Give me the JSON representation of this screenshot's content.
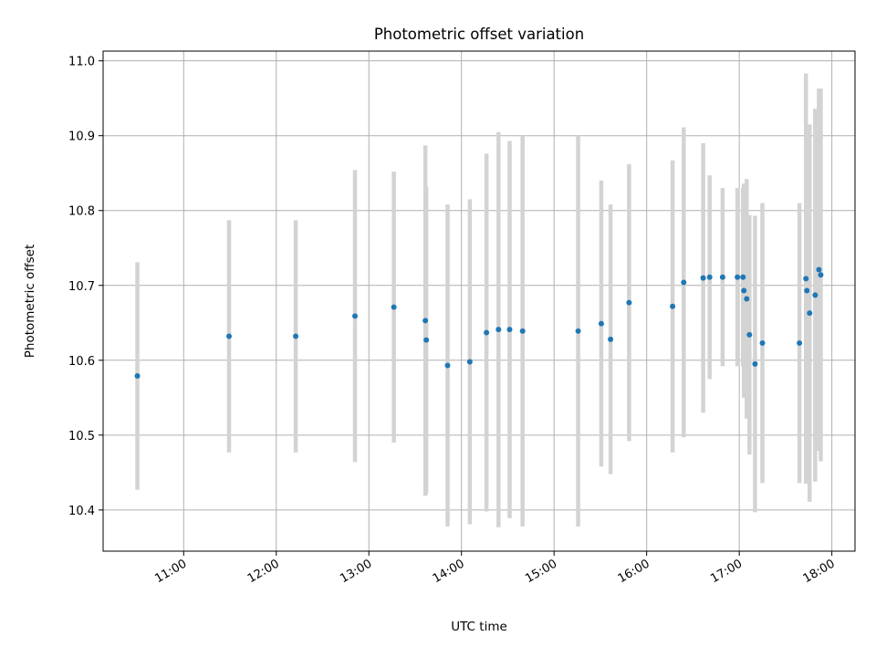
{
  "chart_data": {
    "type": "scatter",
    "title": "Photometric offset variation",
    "xlabel": "UTC time",
    "ylabel": "Photometric offset",
    "x_unit": "hours UTC",
    "xlim": [
      10.13,
      18.25
    ],
    "ylim": [
      10.345,
      11.013
    ],
    "x_ticks": [
      {
        "value": 11,
        "label": "11:00"
      },
      {
        "value": 12,
        "label": "12:00"
      },
      {
        "value": 13,
        "label": "13:00"
      },
      {
        "value": 14,
        "label": "14:00"
      },
      {
        "value": 15,
        "label": "15:00"
      },
      {
        "value": 16,
        "label": "16:00"
      },
      {
        "value": 17,
        "label": "17:00"
      },
      {
        "value": 18,
        "label": "18:00"
      }
    ],
    "y_ticks": [
      {
        "value": 10.4,
        "label": "10.4"
      },
      {
        "value": 10.5,
        "label": "10.5"
      },
      {
        "value": 10.6,
        "label": "10.6"
      },
      {
        "value": 10.7,
        "label": "10.7"
      },
      {
        "value": 10.8,
        "label": "10.8"
      },
      {
        "value": 10.9,
        "label": "10.9"
      },
      {
        "value": 11.0,
        "label": "11.0"
      }
    ],
    "grid": true,
    "marker_color": "#1f77b4",
    "errorbar_color": "#d3d3d3",
    "points": [
      {
        "x": 10.5,
        "y": 10.579,
        "err": 0.152
      },
      {
        "x": 11.49,
        "y": 10.632,
        "err": 0.155
      },
      {
        "x": 12.21,
        "y": 10.632,
        "err": 0.155
      },
      {
        "x": 12.85,
        "y": 10.659,
        "err": 0.195
      },
      {
        "x": 13.27,
        "y": 10.671,
        "err": 0.181
      },
      {
        "x": 13.61,
        "y": 10.653,
        "err": 0.234
      },
      {
        "x": 13.62,
        "y": 10.627,
        "err": 0.205
      },
      {
        "x": 13.85,
        "y": 10.593,
        "err": 0.215
      },
      {
        "x": 14.09,
        "y": 10.598,
        "err": 0.217
      },
      {
        "x": 14.27,
        "y": 10.637,
        "err": 0.239
      },
      {
        "x": 14.4,
        "y": 10.641,
        "err": 0.264
      },
      {
        "x": 14.52,
        "y": 10.641,
        "err": 0.252
      },
      {
        "x": 14.66,
        "y": 10.639,
        "err": 0.261
      },
      {
        "x": 15.26,
        "y": 10.639,
        "err": 0.261
      },
      {
        "x": 15.51,
        "y": 10.649,
        "err": 0.191
      },
      {
        "x": 15.61,
        "y": 10.628,
        "err": 0.18
      },
      {
        "x": 15.81,
        "y": 10.677,
        "err": 0.185
      },
      {
        "x": 16.28,
        "y": 10.672,
        "err": 0.195
      },
      {
        "x": 16.4,
        "y": 10.704,
        "err": 0.207
      },
      {
        "x": 16.61,
        "y": 10.71,
        "err": 0.18
      },
      {
        "x": 16.68,
        "y": 10.711,
        "err": 0.136
      },
      {
        "x": 16.82,
        "y": 10.711,
        "err": 0.119
      },
      {
        "x": 16.98,
        "y": 10.711,
        "err": 0.119
      },
      {
        "x": 17.04,
        "y": 10.711,
        "err": 0.119
      },
      {
        "x": 17.05,
        "y": 10.693,
        "err": 0.143
      },
      {
        "x": 17.08,
        "y": 10.682,
        "err": 0.16
      },
      {
        "x": 17.11,
        "y": 10.634,
        "err": 0.16
      },
      {
        "x": 17.17,
        "y": 10.595,
        "err": 0.198
      },
      {
        "x": 17.25,
        "y": 10.623,
        "err": 0.187
      },
      {
        "x": 17.65,
        "y": 10.623,
        "err": 0.187
      },
      {
        "x": 17.72,
        "y": 10.709,
        "err": 0.274
      },
      {
        "x": 17.73,
        "y": 10.693,
        "err": 0.221
      },
      {
        "x": 17.76,
        "y": 10.663,
        "err": 0.252
      },
      {
        "x": 17.82,
        "y": 10.687,
        "err": 0.249
      },
      {
        "x": 17.86,
        "y": 10.721,
        "err": 0.242
      },
      {
        "x": 17.88,
        "y": 10.714,
        "err": 0.249
      }
    ]
  }
}
